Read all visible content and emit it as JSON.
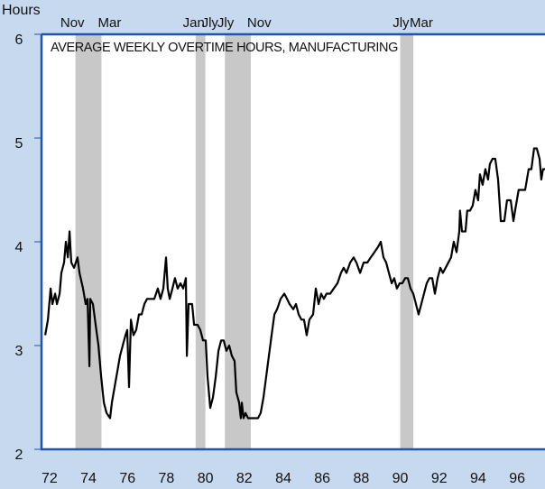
{
  "chart_data": {
    "type": "line",
    "title": "AVERAGE WEEKLY OVERTIME HOURS, MANUFACTURING",
    "y_label": "Hours",
    "xlim": [
      1972.09,
      1997.93
    ],
    "ylim": [
      2,
      6
    ],
    "yticks": [
      2,
      3,
      4,
      5,
      6
    ],
    "xticks": [
      {
        "value": 1972.5,
        "label": "72"
      },
      {
        "value": 1974.5,
        "label": "74"
      },
      {
        "value": 1976.5,
        "label": "76"
      },
      {
        "value": 1978.5,
        "label": "78"
      },
      {
        "value": 1980.5,
        "label": "80"
      },
      {
        "value": 1982.5,
        "label": "82"
      },
      {
        "value": 1984.5,
        "label": "84"
      },
      {
        "value": 1986.5,
        "label": "86"
      },
      {
        "value": 1988.5,
        "label": "88"
      },
      {
        "value": 1990.5,
        "label": "90"
      },
      {
        "value": 1992.5,
        "label": "92"
      },
      {
        "value": 1994.5,
        "label": "94"
      },
      {
        "value": 1996.5,
        "label": "96"
      }
    ],
    "recessions": [
      {
        "start": 1973.83,
        "end": 1975.17,
        "start_label": "Nov",
        "end_label": "Mar"
      },
      {
        "start": 1980.0,
        "end": 1980.5,
        "start_label": "Jan",
        "end_label": "Jly"
      },
      {
        "start": 1981.5,
        "end": 1982.83,
        "start_label": "Jly",
        "end_label": "Nov"
      },
      {
        "start": 1990.5,
        "end": 1991.17,
        "start_label": "Jly",
        "end_label": "Mar"
      }
    ],
    "shade_color": "#c8c8c8",
    "series": [
      {
        "color": "#000000",
        "x": [
          1972.28,
          1972.42,
          1972.56,
          1972.65,
          1972.79,
          1972.88,
          1973.02,
          1973.11,
          1973.25,
          1973.34,
          1973.44,
          1973.53,
          1973.62,
          1973.76,
          1973.94,
          1974.04,
          1974.22,
          1974.36,
          1974.45,
          1974.55,
          1974.59,
          1974.73,
          1974.87,
          1975.01,
          1975.15,
          1975.29,
          1975.43,
          1975.61,
          1975.7,
          1975.84,
          1975.98,
          1976.12,
          1976.26,
          1976.4,
          1976.49,
          1976.58,
          1976.68,
          1976.81,
          1976.95,
          1977.09,
          1977.23,
          1977.37,
          1977.51,
          1977.69,
          1977.88,
          1978.06,
          1978.2,
          1978.34,
          1978.48,
          1978.57,
          1978.67,
          1978.81,
          1978.94,
          1979.08,
          1979.22,
          1979.36,
          1979.5,
          1979.55,
          1979.64,
          1979.82,
          1979.92,
          1980.1,
          1980.24,
          1980.38,
          1980.52,
          1980.61,
          1980.75,
          1980.89,
          1981.03,
          1981.17,
          1981.31,
          1981.44,
          1981.58,
          1981.72,
          1981.86,
          1982.0,
          1982.09,
          1982.23,
          1982.32,
          1982.37,
          1982.46,
          1982.56,
          1982.69,
          1982.83,
          1983.02,
          1983.2,
          1983.34,
          1983.48,
          1983.62,
          1983.76,
          1983.9,
          1984.04,
          1984.18,
          1984.36,
          1984.55,
          1984.69,
          1984.82,
          1985.01,
          1985.15,
          1985.29,
          1985.43,
          1985.56,
          1985.7,
          1985.84,
          1986.03,
          1986.17,
          1986.31,
          1986.44,
          1986.58,
          1986.72,
          1986.91,
          1987.09,
          1987.28,
          1987.46,
          1987.6,
          1987.74,
          1987.93,
          1988.11,
          1988.25,
          1988.44,
          1988.62,
          1988.81,
          1988.99,
          1989.18,
          1989.36,
          1989.5,
          1989.64,
          1989.78,
          1989.92,
          1990.06,
          1990.19,
          1990.33,
          1990.47,
          1990.61,
          1990.75,
          1990.89,
          1991.03,
          1991.17,
          1991.31,
          1991.44,
          1991.58,
          1991.72,
          1991.86,
          1992.0,
          1992.14,
          1992.28,
          1992.42,
          1992.56,
          1992.69,
          1992.83,
          1992.97,
          1993.11,
          1993.25,
          1993.39,
          1993.53,
          1993.57,
          1993.67,
          1993.85,
          1993.94,
          1994.08,
          1994.22,
          1994.36,
          1994.5,
          1994.59,
          1994.73,
          1994.87,
          1995.01,
          1995.1,
          1995.24,
          1995.38,
          1995.52,
          1995.66,
          1995.84,
          1995.98,
          1996.17,
          1996.31,
          1996.44,
          1996.58,
          1996.72,
          1996.91,
          1997.09,
          1997.23,
          1997.37,
          1997.51,
          1997.65,
          1997.74,
          1997.83,
          1997.93
        ],
        "values": [
          3.1,
          3.25,
          3.55,
          3.4,
          3.5,
          3.4,
          3.5,
          3.7,
          3.8,
          4.0,
          3.85,
          4.1,
          3.8,
          3.75,
          3.85,
          3.7,
          3.55,
          3.4,
          3.45,
          2.8,
          3.45,
          3.4,
          3.2,
          3.0,
          2.7,
          2.45,
          2.35,
          2.3,
          2.45,
          2.6,
          2.75,
          2.9,
          3.0,
          3.1,
          3.15,
          2.6,
          3.25,
          3.1,
          3.15,
          3.3,
          3.3,
          3.4,
          3.45,
          3.45,
          3.45,
          3.55,
          3.45,
          3.55,
          3.85,
          3.55,
          3.45,
          3.55,
          3.65,
          3.55,
          3.6,
          3.55,
          3.65,
          2.9,
          3.4,
          3.4,
          3.2,
          3.2,
          3.15,
          3.05,
          3.05,
          2.7,
          2.4,
          2.5,
          2.7,
          2.95,
          3.05,
          3.05,
          2.95,
          3.0,
          2.9,
          2.85,
          2.55,
          2.45,
          2.3,
          2.45,
          2.3,
          2.35,
          2.3,
          2.3,
          2.3,
          2.3,
          2.35,
          2.5,
          2.7,
          2.9,
          3.1,
          3.3,
          3.35,
          3.45,
          3.5,
          3.45,
          3.4,
          3.35,
          3.4,
          3.3,
          3.25,
          3.25,
          3.1,
          3.25,
          3.3,
          3.55,
          3.4,
          3.5,
          3.45,
          3.5,
          3.5,
          3.55,
          3.6,
          3.7,
          3.75,
          3.7,
          3.8,
          3.85,
          3.8,
          3.7,
          3.8,
          3.8,
          3.85,
          3.9,
          3.95,
          4.0,
          3.85,
          3.8,
          3.7,
          3.6,
          3.65,
          3.55,
          3.6,
          3.6,
          3.65,
          3.65,
          3.55,
          3.5,
          3.4,
          3.3,
          3.4,
          3.5,
          3.6,
          3.65,
          3.65,
          3.5,
          3.65,
          3.75,
          3.7,
          3.75,
          3.8,
          3.85,
          4.0,
          3.9,
          4.1,
          4.3,
          4.1,
          4.1,
          4.3,
          4.3,
          4.35,
          4.5,
          4.4,
          4.65,
          4.55,
          4.7,
          4.6,
          4.75,
          4.8,
          4.8,
          4.6,
          4.2,
          4.2,
          4.4,
          4.4,
          4.2,
          4.35,
          4.5,
          4.5,
          4.5,
          4.7,
          4.7,
          4.9,
          4.9,
          4.8,
          4.6,
          4.7,
          4.7
        ]
      }
    ]
  }
}
